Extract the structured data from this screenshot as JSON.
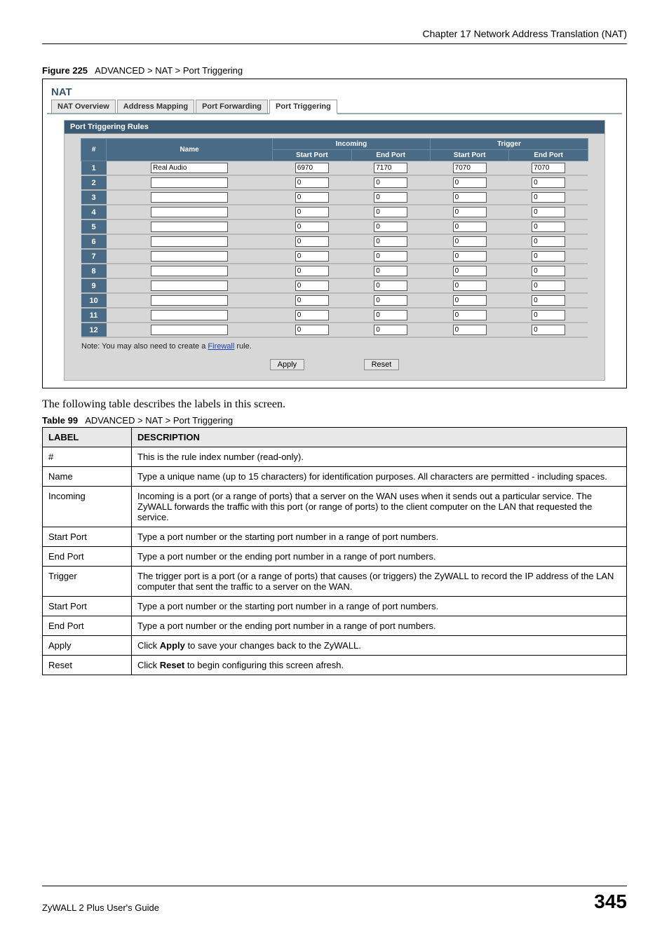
{
  "header": {
    "chapter": "Chapter 17 Network Address Translation (NAT)"
  },
  "figure": {
    "label": "Figure 225",
    "title": "ADVANCED > NAT > Port Triggering"
  },
  "nat": {
    "title": "NAT",
    "tabs": [
      "NAT Overview",
      "Address Mapping",
      "Port Forwarding",
      "Port Triggering"
    ],
    "active_tab": 3,
    "panel_title": "Port Triggering Rules",
    "columns": {
      "num": "#",
      "name": "Name",
      "incoming": "Incoming",
      "trigger": "Trigger",
      "start_port": "Start Port",
      "end_port": "End Port"
    },
    "rows": [
      {
        "n": "1",
        "name": "Real Audio",
        "in_start": "6970",
        "in_end": "7170",
        "tr_start": "7070",
        "tr_end": "7070"
      },
      {
        "n": "2",
        "name": "",
        "in_start": "0",
        "in_end": "0",
        "tr_start": "0",
        "tr_end": "0"
      },
      {
        "n": "3",
        "name": "",
        "in_start": "0",
        "in_end": "0",
        "tr_start": "0",
        "tr_end": "0"
      },
      {
        "n": "4",
        "name": "",
        "in_start": "0",
        "in_end": "0",
        "tr_start": "0",
        "tr_end": "0"
      },
      {
        "n": "5",
        "name": "",
        "in_start": "0",
        "in_end": "0",
        "tr_start": "0",
        "tr_end": "0"
      },
      {
        "n": "6",
        "name": "",
        "in_start": "0",
        "in_end": "0",
        "tr_start": "0",
        "tr_end": "0"
      },
      {
        "n": "7",
        "name": "",
        "in_start": "0",
        "in_end": "0",
        "tr_start": "0",
        "tr_end": "0"
      },
      {
        "n": "8",
        "name": "",
        "in_start": "0",
        "in_end": "0",
        "tr_start": "0",
        "tr_end": "0"
      },
      {
        "n": "9",
        "name": "",
        "in_start": "0",
        "in_end": "0",
        "tr_start": "0",
        "tr_end": "0"
      },
      {
        "n": "10",
        "name": "",
        "in_start": "0",
        "in_end": "0",
        "tr_start": "0",
        "tr_end": "0"
      },
      {
        "n": "11",
        "name": "",
        "in_start": "0",
        "in_end": "0",
        "tr_start": "0",
        "tr_end": "0"
      },
      {
        "n": "12",
        "name": "",
        "in_start": "0",
        "in_end": "0",
        "tr_start": "0",
        "tr_end": "0"
      }
    ],
    "note_prefix": "Note: You may also need to create a ",
    "note_link": "Firewall",
    "note_suffix": " rule.",
    "apply": "Apply",
    "reset": "Reset"
  },
  "body_text": "The following table describes the labels in this screen.",
  "table99": {
    "label": "Table 99",
    "title": "ADVANCED > NAT > Port Triggering",
    "head_label": "LABEL",
    "head_desc": "DESCRIPTION",
    "rows": [
      {
        "label": "#",
        "desc": "This is the rule index number (read-only)."
      },
      {
        "label": "Name",
        "desc": "Type a unique name (up to 15 characters) for identification purposes. All characters are permitted - including spaces."
      },
      {
        "label": "Incoming",
        "desc": "Incoming is a port (or a range of ports) that a server on the WAN uses when it sends out a particular service. The ZyWALL forwards the traffic with this port (or range of ports) to the client computer on the LAN that requested the service."
      },
      {
        "label": "Start Port",
        "desc": "Type a port number or the starting port number in a range of port numbers."
      },
      {
        "label": "End Port",
        "desc": "Type a port number or the ending port number in a range of port numbers."
      },
      {
        "label": "Trigger",
        "desc": "The trigger port is a port (or a range of ports) that causes (or triggers) the ZyWALL to record the IP address of the LAN computer that sent the traffic to a server on the WAN."
      },
      {
        "label": "Start Port",
        "desc": "Type a port number or the starting port number in a range of port numbers."
      },
      {
        "label": "End Port",
        "desc": "Type a port number or the ending port number in a range of port numbers."
      },
      {
        "label": "Apply",
        "desc_html": "Click <b>Apply</b> to save your changes back to the ZyWALL."
      },
      {
        "label": "Reset",
        "desc_html": "Click <b>Reset</b> to begin configuring this screen afresh."
      }
    ]
  },
  "footer": {
    "guide": "ZyWALL 2 Plus User's Guide",
    "page": "345"
  }
}
